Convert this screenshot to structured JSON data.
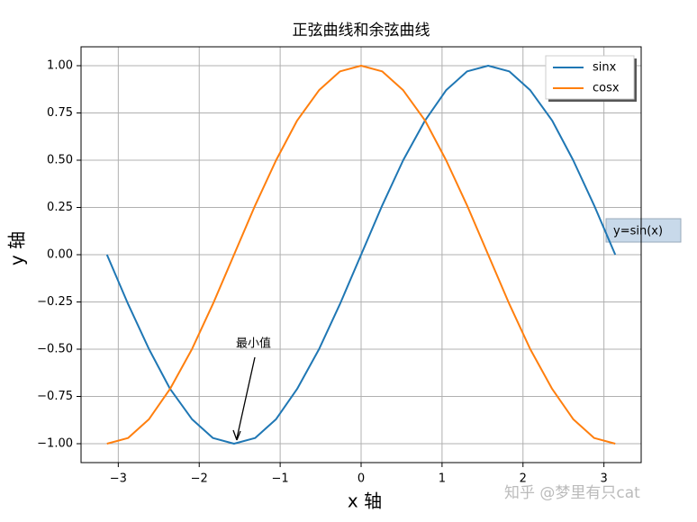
{
  "chart_data": {
    "type": "line",
    "title": "正弦曲线和余弦曲线",
    "x_label": "x 轴",
    "y_label": "y 轴",
    "x": [
      -3.14,
      -2.88,
      -2.62,
      -2.36,
      -2.09,
      -1.83,
      -1.57,
      -1.31,
      -1.05,
      -0.79,
      -0.52,
      -0.26,
      0,
      0.26,
      0.52,
      0.79,
      1.05,
      1.31,
      1.57,
      1.83,
      2.09,
      2.36,
      2.62,
      2.88,
      3.14
    ],
    "series": [
      {
        "name": "sinx",
        "color": "#1f77b4",
        "values": [
          0,
          -0.26,
          -0.5,
          -0.71,
          -0.87,
          -0.97,
          -1,
          -0.97,
          -0.87,
          -0.71,
          -0.5,
          -0.26,
          0,
          0.26,
          0.5,
          0.71,
          0.87,
          0.97,
          1,
          0.97,
          0.87,
          0.71,
          0.5,
          0.26,
          0
        ]
      },
      {
        "name": "cosx",
        "color": "#ff7f0e",
        "values": [
          -1,
          -0.97,
          -0.87,
          -0.71,
          -0.5,
          -0.26,
          0,
          0.26,
          0.5,
          0.71,
          0.87,
          0.97,
          1,
          0.97,
          0.87,
          0.71,
          0.5,
          0.26,
          0,
          -0.26,
          -0.5,
          -0.71,
          -0.87,
          -0.97,
          -1
        ]
      }
    ],
    "xlim": [
      -3.46,
      3.46
    ],
    "ylim": [
      -1.1,
      1.1
    ],
    "xticks": [
      {
        "value": -3,
        "label": "−3"
      },
      {
        "value": -2,
        "label": "−2"
      },
      {
        "value": -1,
        "label": "−1"
      },
      0,
      1,
      2,
      3
    ],
    "yticks": [
      {
        "value": -1,
        "label": "−1.00"
      },
      {
        "value": -0.75,
        "label": "−0.75"
      },
      {
        "value": -0.5,
        "label": "−0.50"
      },
      {
        "value": -0.25,
        "label": "−0.25"
      },
      {
        "value": 0,
        "label": "0.00"
      },
      {
        "value": 0.25,
        "label": "0.25"
      },
      {
        "value": 0.5,
        "label": "0.50"
      },
      {
        "value": 0.75,
        "label": "0.75"
      },
      {
        "value": 1,
        "label": "1.00"
      }
    ],
    "grid": true,
    "legend": "upper right",
    "annotations": [
      "最小值",
      "y=sin(x)"
    ],
    "watermark": "知乎 @梦里有只cat"
  }
}
